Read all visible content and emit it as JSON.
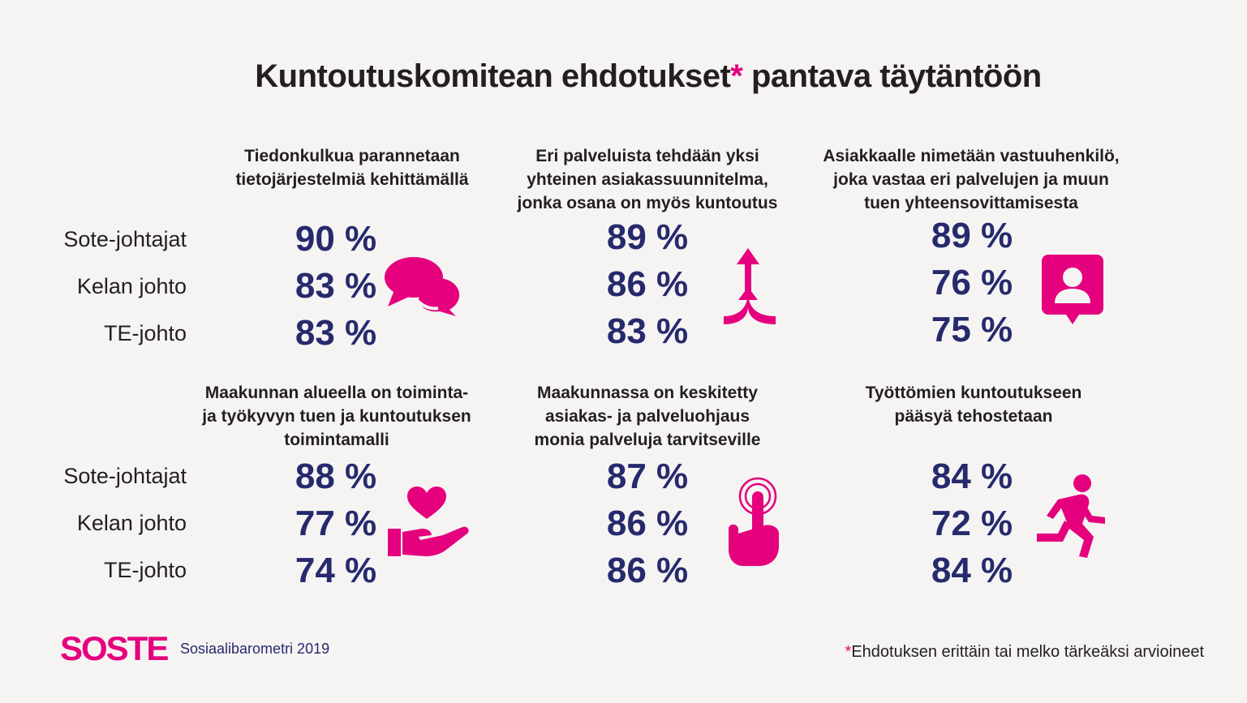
{
  "title": {
    "main": "Kuntoutuskomitean ehdotukset",
    "star": "*",
    "rest": " pantava täytäntöön"
  },
  "row_labels": [
    "Sote-johtajat",
    "Kelan johto",
    "TE-johto"
  ],
  "chart_data": {
    "type": "table",
    "rows": [
      "Sote-johtajat",
      "Kelan johto",
      "TE-johto"
    ],
    "unit": "%",
    "panels": [
      {
        "heading": [
          "Tiedonkulkua parannetaan",
          "tietojärjestelmiä kehittämällä"
        ],
        "values": [
          90,
          83,
          83
        ],
        "icon": "chat-bubbles-icon"
      },
      {
        "heading": [
          "Eri palveluista tehdään yksi",
          "yhteinen asiakassuunnitelma,",
          "jonka osana on myös kuntoutus"
        ],
        "values": [
          89,
          86,
          83
        ],
        "icon": "merge-arrows-icon"
      },
      {
        "heading": [
          "Asiakkaalle nimetään vastuuhenkilö,",
          "joka vastaa eri palvelujen ja muun",
          "tuen yhteensovittamisesta"
        ],
        "values": [
          89,
          76,
          75
        ],
        "icon": "contact-person-icon"
      },
      {
        "heading": [
          "Maakunnan alueella on toiminta-",
          "ja työkyvyn tuen ja kuntoutuksen",
          "toimintamalli"
        ],
        "values": [
          88,
          77,
          74
        ],
        "icon": "heart-in-hand-icon"
      },
      {
        "heading": [
          "Maakunnassa on keskitetty",
          "asiakas- ja palveluohjaus",
          "monia palveluja tarvitseville"
        ],
        "values": [
          87,
          86,
          86
        ],
        "icon": "touch-hand-icon"
      },
      {
        "heading": [
          "Työttömien kuntoutukseen",
          "pääsyä tehostetaan"
        ],
        "values": [
          84,
          72,
          84
        ],
        "icon": "running-person-icon"
      }
    ]
  },
  "footer": {
    "logo": "SOSTE",
    "source": "Sosiaalibarometri 2019",
    "footnote_star": "*",
    "footnote": "Ehdotuksen erittäin tai melko tärkeäksi arvioineet"
  },
  "colors": {
    "accent": "#e5007e",
    "value": "#262a6d",
    "text": "#231f20",
    "background": "#f6f4f3"
  }
}
